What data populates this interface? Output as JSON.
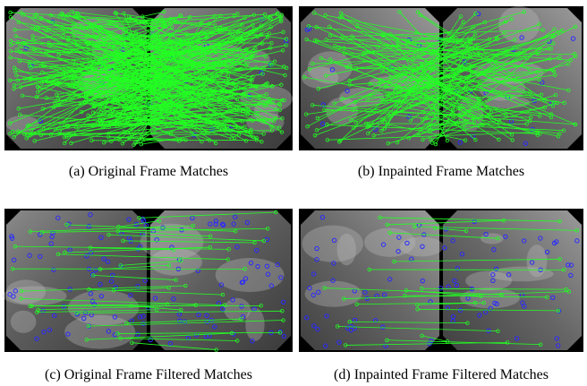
{
  "panels": [
    {
      "caption": "(a)  Original Frame Matches"
    },
    {
      "caption": "(b)  Inpainted Frame Matches"
    },
    {
      "caption": "(c)  Original Frame Filtered Matches"
    },
    {
      "caption": "(d)  Inpainted Frame Filtered Matches"
    }
  ]
}
